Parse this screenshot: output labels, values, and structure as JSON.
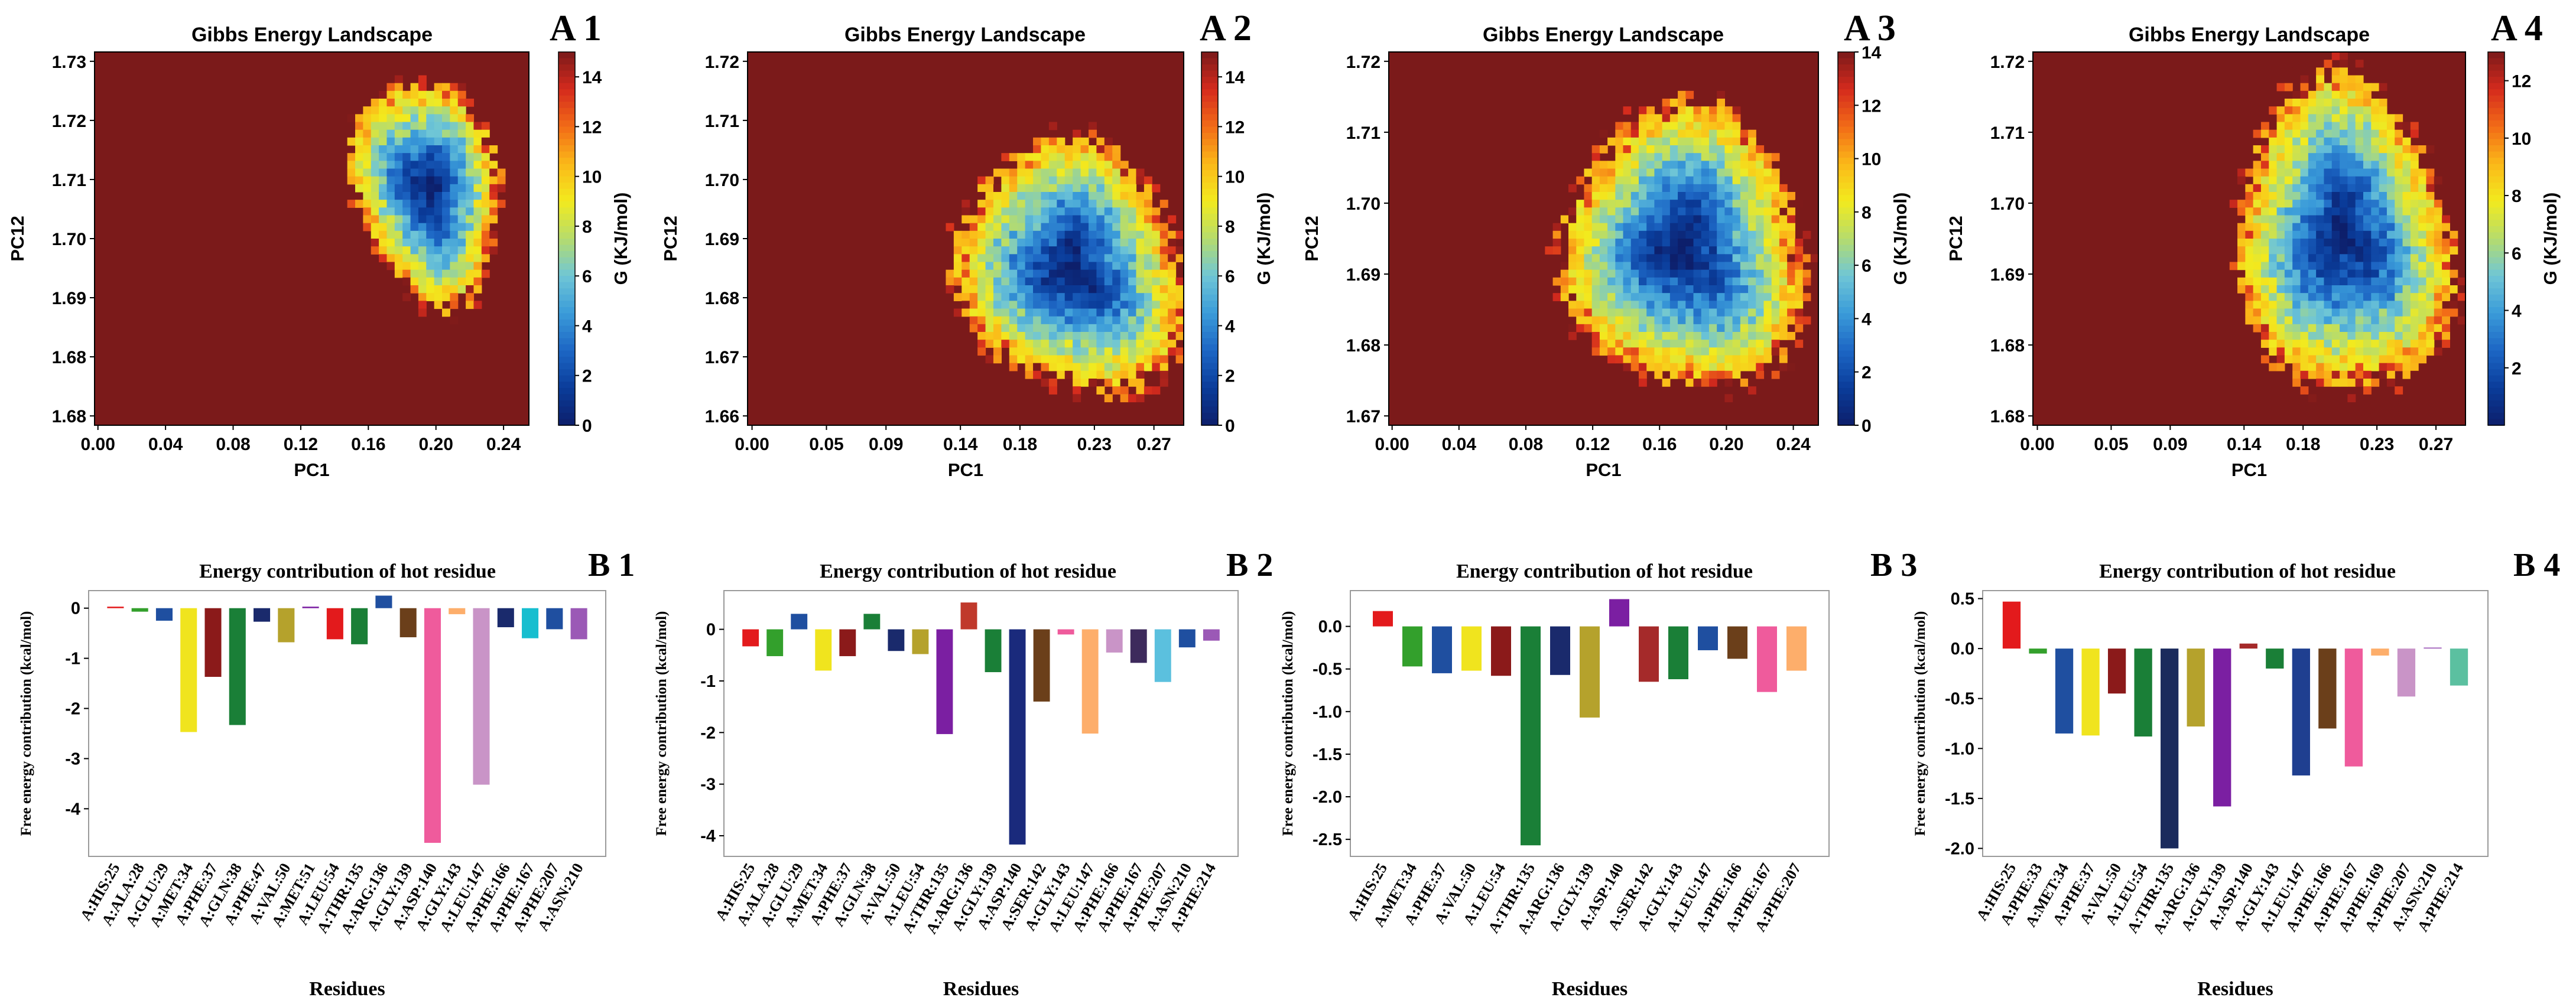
{
  "figure": {
    "heat_colormap": [
      "#0d1f6b",
      "#0a3c9a",
      "#1d66c4",
      "#3a9bd9",
      "#6fc6d6",
      "#b6dc6c",
      "#f2ea1e",
      "#fbb818",
      "#f26b17",
      "#d42a1d",
      "#7b1a1a"
    ],
    "heatmap_bg": "#7b1a1a",
    "text_color": "#000000"
  },
  "chart_data": [
    {
      "id": "A1",
      "type": "heatmap",
      "title": "Gibbs Energy Landscape",
      "panel_label": "A 1",
      "xlabel": "PC1",
      "ylabel": "PC12",
      "x_ticks": [
        "0.00",
        "0.04",
        "0.08",
        "0.12",
        "0.16",
        "0.20",
        "0.24"
      ],
      "xlim": [
        -0.002,
        0.255
      ],
      "y_ticks": [
        "1.68",
        "1.68",
        "1.69",
        "1.70",
        "1.71",
        "1.72",
        "1.73"
      ],
      "colorbar_label": "G (KJ/mol)",
      "colorbar_ticks": [
        0,
        2,
        4,
        6,
        8,
        10,
        12,
        14
      ],
      "zlim": [
        0,
        15
      ],
      "basin": {
        "center_x": 0.195,
        "center_y_frac": 0.37,
        "radius_x": 0.04,
        "radius_y_frac": 0.29,
        "tilt_deg": -12,
        "grid": [
          55,
          48
        ]
      }
    },
    {
      "id": "A2",
      "type": "heatmap",
      "title": "Gibbs Energy Landscape",
      "panel_label": "A 2",
      "xlabel": "PC1",
      "ylabel": "PC12",
      "x_ticks": [
        "0.00",
        "0.05",
        "0.09",
        "0.14",
        "0.18",
        "0.23",
        "0.27"
      ],
      "xlim": [
        -0.003,
        0.29
      ],
      "y_ticks": [
        "1.66",
        "1.67",
        "1.68",
        "1.69",
        "1.70",
        "1.71",
        "1.72"
      ],
      "colorbar_label": "G (KJ/mol)",
      "colorbar_ticks": [
        0,
        2,
        4,
        6,
        8,
        10,
        12,
        14
      ],
      "zlim": [
        0,
        15
      ],
      "basin": {
        "center_x": 0.215,
        "center_y_frac": 0.58,
        "radius_x": 0.07,
        "radius_y_frac": 0.33,
        "tilt_deg": -28,
        "grid": [
          55,
          48
        ]
      }
    },
    {
      "id": "A3",
      "type": "heatmap",
      "title": "Gibbs Energy Landscape",
      "panel_label": "A 3",
      "xlabel": "PC1",
      "ylabel": "PC12",
      "x_ticks": [
        "0.00",
        "0.04",
        "0.08",
        "0.12",
        "0.16",
        "0.20",
        "0.24"
      ],
      "xlim": [
        -0.002,
        0.255
      ],
      "y_ticks": [
        "1.67",
        "1.68",
        "1.69",
        "1.70",
        "1.71",
        "1.72"
      ],
      "colorbar_label": "G (KJ/mol)",
      "colorbar_ticks": [
        0,
        2,
        4,
        6,
        8,
        10,
        12,
        14
      ],
      "zlim": [
        0,
        14
      ],
      "basin": {
        "center_x": 0.175,
        "center_y_frac": 0.53,
        "radius_x": 0.068,
        "radius_y_frac": 0.36,
        "tilt_deg": -10,
        "grid": [
          55,
          48
        ]
      }
    },
    {
      "id": "A4",
      "type": "heatmap",
      "title": "Gibbs Energy Landscape",
      "panel_label": "A 4",
      "xlabel": "PC1",
      "ylabel": "PC12",
      "x_ticks": [
        "0.00",
        "0.05",
        "0.09",
        "0.14",
        "0.18",
        "0.23",
        "0.27"
      ],
      "xlim": [
        -0.003,
        0.29
      ],
      "y_ticks": [
        "1.68",
        "1.68",
        "1.69",
        "1.70",
        "1.71",
        "1.72"
      ],
      "colorbar_label": "G (KJ/mol)",
      "colorbar_ticks": [
        2,
        4,
        6,
        8,
        10,
        12
      ],
      "zlim": [
        0,
        13
      ],
      "basin": {
        "center_x": 0.208,
        "center_y_frac": 0.5,
        "radius_x": 0.068,
        "radius_y_frac": 0.4,
        "tilt_deg": -5,
        "grid": [
          55,
          48
        ]
      }
    },
    {
      "id": "B1",
      "type": "bar",
      "title": "Energy contribution of hot residue",
      "panel_label": "B 1",
      "xlabel": "Residues",
      "ylabel": "Free energy contribution (kcal/mol)",
      "ylim": [
        -4.95,
        0.35
      ],
      "y_ticks": [
        0,
        -1,
        -2,
        -3,
        -4
      ],
      "categories": [
        "A:HIS:25",
        "A:ALA:28",
        "A:GLU:29",
        "A:MET:34",
        "A:PHE:37",
        "A:GLN:38",
        "A:PHE:47",
        "A:VAL:50",
        "A:MET:51",
        "A:LEU:54",
        "A:THR:135",
        "A:ARG:136",
        "A:GLY:139",
        "A:ASP:140",
        "A:GLY:143",
        "A:LEU:147",
        "A:PHE:166",
        "A:PHE:167",
        "A:PHE:207",
        "A:ASN:210"
      ],
      "values": [
        0.03,
        -0.07,
        -0.25,
        -2.47,
        -1.37,
        -2.33,
        -0.27,
        -0.68,
        0.03,
        -0.62,
        -0.72,
        0.25,
        -0.58,
        -4.68,
        -0.12,
        -3.52,
        -0.38,
        -0.6,
        -0.42,
        -0.62
      ],
      "colors": [
        "#e31a1c",
        "#33a02c",
        "#1f4fa0",
        "#f0e41e",
        "#8b1a1a",
        "#1a7f37",
        "#1a2a6c",
        "#b5a22c",
        "#7b1fa2",
        "#e31a1c",
        "#1a7f37",
        "#1f4fa0",
        "#6b3f1a",
        "#ef5b9c",
        "#fdae6b",
        "#c994c7",
        "#1a2a6c",
        "#17becf",
        "#1f4fa0",
        "#9b59b6"
      ]
    },
    {
      "id": "B2",
      "type": "bar",
      "title": "Energy contribution of hot residue",
      "panel_label": "B 2",
      "xlabel": "Residues",
      "ylabel": "Free energy contribution (kcal/mol)",
      "ylim": [
        -4.4,
        0.75
      ],
      "y_ticks": [
        0,
        -1,
        -2,
        -3,
        -4
      ],
      "categories": [
        "A:HIS:25",
        "A:ALA:28",
        "A:GLU:29",
        "A:MET:34",
        "A:PHE:37",
        "A:GLN:38",
        "A:VAL:50",
        "A:LEU:54",
        "A:THR:135",
        "A:ARG:136",
        "A:GLY:139",
        "A:ASP:140",
        "A:SER:142",
        "A:GLY:143",
        "A:LEU:147",
        "A:PHE:166",
        "A:PHE:167",
        "A:PHE:207",
        "A:ASN:210",
        "A:PHE:214"
      ],
      "values": [
        -0.33,
        -0.52,
        0.3,
        -0.8,
        -0.52,
        0.3,
        -0.42,
        -0.48,
        -2.03,
        0.52,
        -0.83,
        -4.17,
        -1.4,
        -0.1,
        -2.02,
        -0.45,
        -0.65,
        -1.02,
        -0.35,
        -0.22
      ],
      "colors": [
        "#e31a1c",
        "#33a02c",
        "#1f4fa0",
        "#f0e41e",
        "#8b1a1a",
        "#1a7f37",
        "#1a2a6c",
        "#b5a22c",
        "#7b1fa2",
        "#c0392b",
        "#1a7f37",
        "#1a2a7c",
        "#6b3f1a",
        "#ef5b9c",
        "#fdae6b",
        "#c994c7",
        "#3d2a5c",
        "#5bc0de",
        "#1f4fa0",
        "#9b59b6"
      ]
    },
    {
      "id": "B3",
      "type": "bar",
      "title": "Energy contribution of hot residue",
      "panel_label": "B 3",
      "xlabel": "Residues",
      "ylabel": "Free energy contribution (kcal/mol)",
      "ylim": [
        -2.7,
        0.42
      ],
      "y_ticks": [
        0.0,
        -0.5,
        -1.0,
        -1.5,
        -2.0,
        -2.5
      ],
      "categories": [
        "A:HIS:25",
        "A:MET:34",
        "A:PHE:37",
        "A:VAL:50",
        "A:LEU:54",
        "A:THR:135",
        "A:ARG:136",
        "A:GLY:139",
        "A:ASP:140",
        "A:SER:142",
        "A:GLY:143",
        "A:LEU:147",
        "A:PHE:166",
        "A:PHE:167",
        "A:PHE:207"
      ],
      "values": [
        0.18,
        -0.47,
        -0.55,
        -0.52,
        -0.58,
        -2.57,
        -0.57,
        -1.07,
        0.32,
        -0.65,
        -0.62,
        -0.28,
        -0.38,
        -0.77,
        -0.52
      ],
      "colors": [
        "#e31a1c",
        "#33a02c",
        "#1f4fa0",
        "#f0e41e",
        "#8b1a1a",
        "#1a7f37",
        "#1a2a6c",
        "#b5a22c",
        "#7b1fa2",
        "#a52a2a",
        "#1a7f37",
        "#1f4fa0",
        "#6b3f1a",
        "#ef5b9c",
        "#fdae6b"
      ]
    },
    {
      "id": "B4",
      "type": "bar",
      "title": "Energy contribution of hot residue",
      "panel_label": "B 4",
      "xlabel": "Residues",
      "ylabel": "Free energy contribution (kcal/mol)",
      "ylim": [
        -2.08,
        0.58
      ],
      "y_ticks": [
        0.5,
        0.0,
        -0.5,
        -1.0,
        -1.5,
        -2.0
      ],
      "categories": [
        "A:HIS:25",
        "A:PHE:33",
        "A:MET:34",
        "A:PHE:37",
        "A:VAL:50",
        "A:LEU:54",
        "A:THR:135",
        "A:ARG:136",
        "A:GLY:139",
        "A:ASP:140",
        "A:GLY:143",
        "A:LEU:147",
        "A:PHE:166",
        "A:PHE:167",
        "A:PHE:169",
        "A:PHE:207",
        "A:ASN:210",
        "A:PHE:214"
      ],
      "values": [
        0.47,
        -0.05,
        -0.85,
        -0.87,
        -0.45,
        -0.88,
        -2.0,
        -0.78,
        -1.58,
        0.05,
        -0.2,
        -1.27,
        -0.8,
        -1.18,
        -0.07,
        -0.48,
        0.01,
        -0.37
      ],
      "colors": [
        "#e31a1c",
        "#33a02c",
        "#1f4fa0",
        "#f0e41e",
        "#8b1a1a",
        "#1a7f37",
        "#1a2a5c",
        "#b5a22c",
        "#7b1fa2",
        "#a52a2a",
        "#1a7f37",
        "#1f3f90",
        "#6b3f1a",
        "#ef5b9c",
        "#fdae6b",
        "#c994c7",
        "#9b59b6",
        "#5bc0a0"
      ]
    }
  ]
}
